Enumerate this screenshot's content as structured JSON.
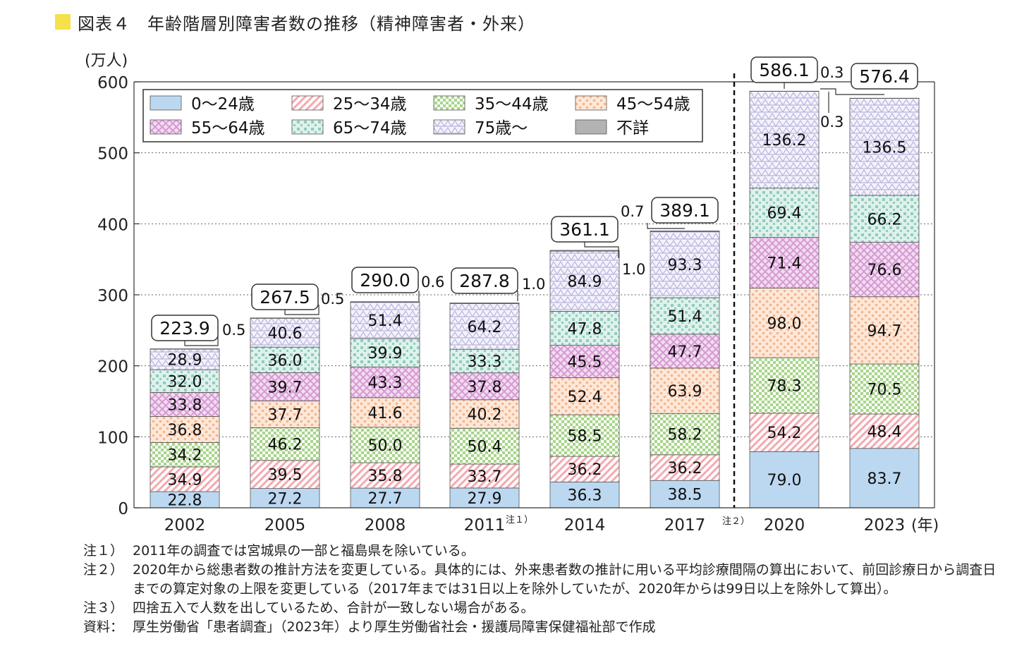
{
  "title": {
    "figure_no": "図表４",
    "text": "年齢階層別障害者数の推移（精神障害者・外来）"
  },
  "chart_data": {
    "type": "bar",
    "stacked": true,
    "ylabel": "(万人)",
    "xlabel_unit": "(年)",
    "ylim": [
      0,
      600
    ],
    "yticks": [
      0,
      100,
      200,
      300,
      400,
      500,
      600
    ],
    "grid": "horizontal-dotted",
    "legend_position": "top-left",
    "categories": [
      "2002",
      "2005",
      "2008",
      "2011",
      "2014",
      "2017",
      "2020",
      "2023"
    ],
    "category_notes": [
      "",
      "",
      "",
      "注１）",
      "",
      "",
      "",
      ""
    ],
    "method_change_note": "注２）",
    "series": [
      {
        "name": "0～24歳",
        "color": "#bcd8f0",
        "pattern": "solid",
        "values": [
          22.8,
          27.2,
          27.7,
          27.9,
          36.3,
          38.5,
          79.0,
          83.7
        ]
      },
      {
        "name": "25～34歳",
        "color": "#f4a9b0",
        "pattern": "diagonal",
        "values": [
          34.9,
          39.5,
          35.8,
          33.7,
          36.2,
          36.2,
          54.2,
          48.4
        ]
      },
      {
        "name": "35～44歳",
        "color": "#a8d58a",
        "pattern": "checker",
        "values": [
          34.2,
          46.2,
          50.0,
          50.4,
          58.5,
          58.2,
          78.3,
          70.5
        ]
      },
      {
        "name": "45～54歳",
        "color": "#f6b38c",
        "pattern": "dots",
        "values": [
          36.8,
          37.7,
          41.6,
          40.2,
          52.4,
          63.9,
          98.0,
          94.7
        ]
      },
      {
        "name": "55～64歳",
        "color": "#d59ad2",
        "pattern": "crosshatch",
        "values": [
          33.8,
          39.7,
          43.3,
          37.8,
          45.5,
          47.7,
          71.4,
          76.6
        ]
      },
      {
        "name": "65～74歳",
        "color": "#8fcdbd",
        "pattern": "squares",
        "values": [
          32.0,
          36.0,
          39.9,
          33.3,
          47.8,
          51.4,
          69.4,
          66.2
        ]
      },
      {
        "name": "75歳～",
        "color": "#b9b4de",
        "pattern": "triangles",
        "values": [
          28.9,
          40.6,
          51.4,
          64.2,
          84.9,
          93.3,
          136.2,
          136.5
        ]
      },
      {
        "name": "不詳",
        "color": "#b3b3b3",
        "pattern": "solid",
        "values": [
          0.5,
          0.5,
          0.6,
          1.0,
          1.0,
          0.7,
          0.3,
          0.3
        ]
      }
    ],
    "totals": [
      "223.9",
      "267.5",
      "290.0",
      "287.8",
      "361.1",
      "389.1",
      "586.1",
      "576.4"
    ],
    "unknown_labels": [
      "0.5",
      "0.5",
      "0.6",
      "1.0",
      "1.0",
      "0.7",
      "0.3",
      "0.3"
    ]
  },
  "notes": [
    {
      "mark": "注１）",
      "text": "2011年の調査では宮城県の一部と福島県を除いている。"
    },
    {
      "mark": "注２）",
      "text": "2020年から総患者数の推計方法を変更している。具体的には、外来患者数の推計に用いる平均診療間隔の算出において、前回診療日から調査日までの算定対象の上限を変更している（2017年までは31日以上を除外していたが、2020年からは99日以上を除外して算出）。"
    },
    {
      "mark": "注３）",
      "text": "四捨五入で人数を出しているため、合計が一致しない場合がある。"
    }
  ],
  "source": {
    "mark": "資料：",
    "text": "厚生労働省「患者調査」（2023年）より厚生労働省社会・援護局障害保健福祉部で作成"
  }
}
